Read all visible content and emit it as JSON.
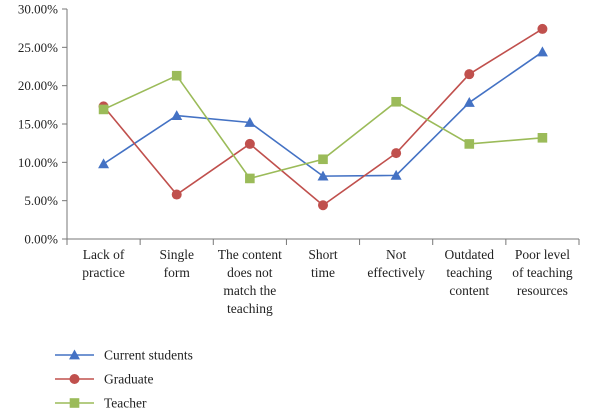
{
  "chart_data": {
    "type": "line",
    "title": "",
    "xlabel": "",
    "ylabel": "",
    "ylim": [
      0,
      30
    ],
    "y_ticks": [
      "0.00%",
      "5.00%",
      "10.00%",
      "15.00%",
      "20.00%",
      "25.00%",
      "30.00%"
    ],
    "grid": false,
    "legend_position": "bottom-left",
    "categories": [
      [
        "Lack of",
        "practice"
      ],
      [
        "Single",
        "form"
      ],
      [
        "The content",
        "does not",
        "match the",
        "teaching"
      ],
      [
        "Short",
        "time"
      ],
      [
        "Not",
        "effectively"
      ],
      [
        "Outdated",
        "teaching",
        "content"
      ],
      [
        "Poor level",
        "of teaching",
        "resources"
      ]
    ],
    "series": [
      {
        "name": "Current students",
        "marker": "triangle",
        "color": "#4472c4",
        "values": [
          9.8,
          16.1,
          15.2,
          8.2,
          8.3,
          17.8,
          24.4
        ]
      },
      {
        "name": "Graduate",
        "marker": "circle",
        "color": "#c0504d",
        "values": [
          17.3,
          5.8,
          12.4,
          4.4,
          11.2,
          21.5,
          27.4
        ]
      },
      {
        "name": "Teacher",
        "marker": "square",
        "color": "#9bbb59",
        "values": [
          16.9,
          21.3,
          7.9,
          10.4,
          17.9,
          12.4,
          13.2
        ]
      }
    ]
  }
}
